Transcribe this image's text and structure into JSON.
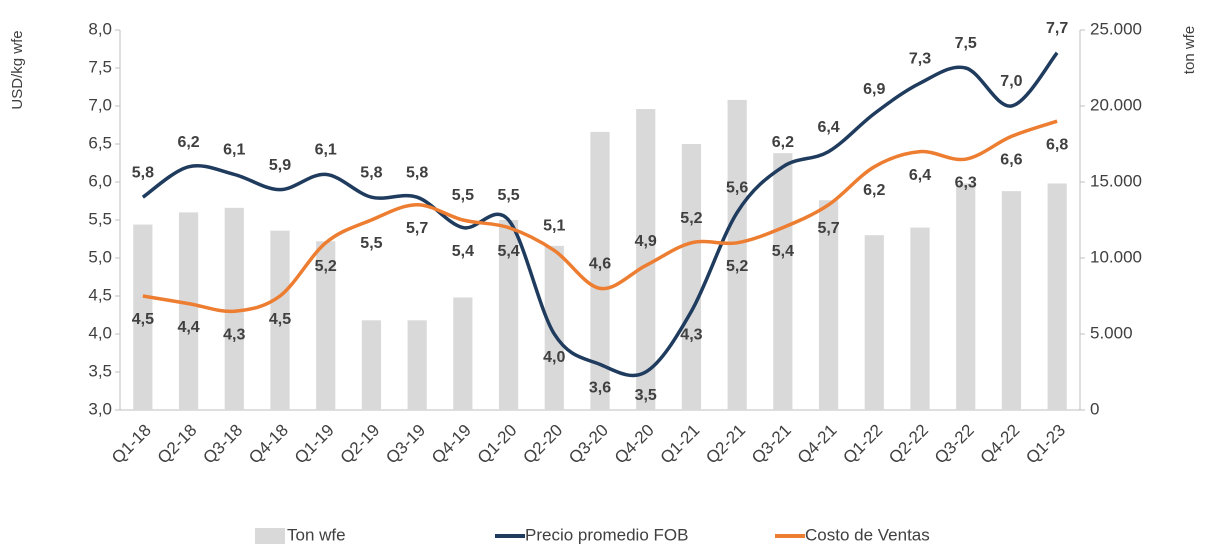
{
  "chart_data": {
    "type": "bar_line",
    "y_label": "USD/kg wfe",
    "y2_label": "ton wfe",
    "categories": [
      "Q1-18",
      "Q2-18",
      "Q3-18",
      "Q4-18",
      "Q1-19",
      "Q2-19",
      "Q3-19",
      "Q4-19",
      "Q1-20",
      "Q2-20",
      "Q3-20",
      "Q4-20",
      "Q1-21",
      "Q2-21",
      "Q3-21",
      "Q4-21",
      "Q1-22",
      "Q2-22",
      "Q3-22",
      "Q4-22",
      "Q1-23"
    ],
    "series": [
      {
        "name": "Ton wfe",
        "type": "bar",
        "axis": "y2",
        "color": "#d9d9d9",
        "values": [
          12200,
          13000,
          13300,
          11800,
          11100,
          5900,
          5900,
          7400,
          12500,
          10800,
          18300,
          19800,
          17500,
          20400,
          16900,
          13800,
          11500,
          12000,
          14900,
          14400,
          14900
        ]
      },
      {
        "name": "Precio promedio FOB",
        "type": "line",
        "color": "#1f3b5e",
        "values": [
          5.8,
          6.2,
          6.1,
          5.9,
          6.1,
          5.8,
          5.8,
          5.4,
          5.5,
          4.0,
          3.6,
          3.5,
          4.3,
          5.6,
          6.2,
          6.4,
          6.9,
          7.3,
          7.5,
          7.0,
          7.7
        ],
        "value_labels": [
          "5,8",
          "6,2",
          "6,1",
          "5,9",
          "6,1",
          "5,8",
          "5,8",
          "5,4",
          "5,5",
          "4,0",
          "3,6",
          "3,5",
          "4,3",
          "5,6",
          "6,2",
          "6,4",
          "6,9",
          "7,3",
          "7,5",
          "7,0",
          "7,7"
        ]
      },
      {
        "name": "Costo de Ventas",
        "type": "line",
        "color": "#ed7d31",
        "values": [
          4.5,
          4.4,
          4.3,
          4.5,
          5.2,
          5.5,
          5.7,
          5.5,
          5.4,
          5.1,
          4.6,
          4.9,
          5.2,
          5.2,
          5.4,
          5.7,
          6.2,
          6.4,
          6.3,
          6.6,
          6.8
        ],
        "value_labels": [
          "4,5",
          "4,4",
          "4,3",
          "4,5",
          "5,2",
          "5,5",
          "5,7",
          "5,5",
          "5,4",
          "5,1",
          "4,6",
          "4,9",
          "5,2",
          "5,2",
          "5,4",
          "5,7",
          "6,2",
          "6,4",
          "6,3",
          "6,6",
          "6,8"
        ]
      }
    ],
    "ylim": [
      3.0,
      8.0
    ],
    "yticks": [
      {
        "value": 3.0,
        "label": "3,0"
      },
      {
        "value": 3.5,
        "label": "3,5"
      },
      {
        "value": 4.0,
        "label": "4,0"
      },
      {
        "value": 4.5,
        "label": "4,5"
      },
      {
        "value": 5.0,
        "label": "5,0"
      },
      {
        "value": 5.5,
        "label": "5,5"
      },
      {
        "value": 6.0,
        "label": "6,0"
      },
      {
        "value": 6.5,
        "label": "6,5"
      },
      {
        "value": 7.0,
        "label": "7,0"
      },
      {
        "value": 7.5,
        "label": "7,5"
      },
      {
        "value": 8.0,
        "label": "8,0"
      }
    ],
    "y2lim": [
      0,
      25000
    ],
    "y2ticks": [
      0,
      {
        "value": 5000,
        "label": "5.000"
      },
      {
        "value": 10000,
        "label": "10.000"
      },
      {
        "value": 15000,
        "label": "15.000"
      },
      {
        "value": 20000,
        "label": "20.000"
      },
      {
        "value": 25000,
        "label": "25.000"
      }
    ],
    "legend": "bottom"
  }
}
